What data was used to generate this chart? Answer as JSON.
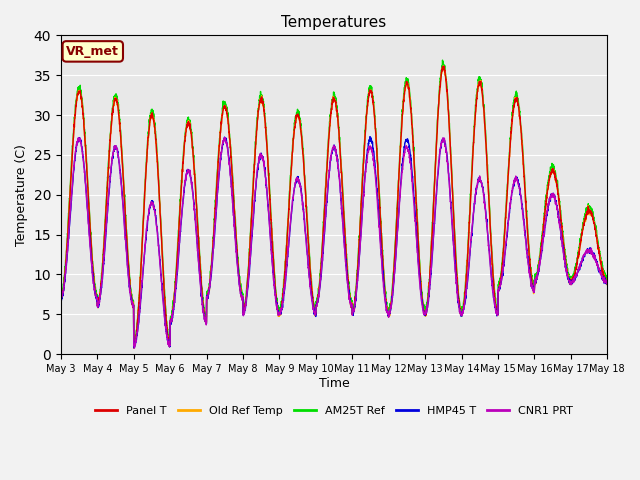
{
  "title": "Temperatures",
  "xlabel": "Time",
  "ylabel": "Temperature (C)",
  "ylim": [
    0,
    40
  ],
  "xlim_days": [
    0,
    15
  ],
  "annotation": "VR_met",
  "background_color": "#e8e8e8",
  "fig_background": "#f2f2f2",
  "grid_color": "white",
  "series": {
    "Panel T": {
      "color": "#dd0000",
      "lw": 1.0
    },
    "Old Ref Temp": {
      "color": "#ffaa00",
      "lw": 1.0
    },
    "AM25T Ref": {
      "color": "#00dd00",
      "lw": 1.0
    },
    "HMP45 T": {
      "color": "#0000dd",
      "lw": 1.0
    },
    "CNR1 PRT": {
      "color": "#bb00bb",
      "lw": 1.0
    }
  },
  "xtick_labels": [
    "May 3",
    "May 4",
    "May 5",
    "May 6",
    "May 7",
    "May 8",
    "May 9",
    "May 10",
    "May 11",
    "May 12",
    "May 13",
    "May 14",
    "May 15",
    "May 16",
    "May 17",
    "May 18"
  ],
  "xtick_positions": [
    0,
    1,
    2,
    3,
    4,
    5,
    6,
    7,
    8,
    9,
    10,
    11,
    12,
    13,
    14,
    15
  ],
  "daily_mins": [
    7,
    6,
    1,
    4,
    7,
    5,
    5,
    6,
    5,
    5,
    5,
    5,
    8,
    9,
    9,
    9
  ],
  "daily_maxs": [
    33,
    32,
    30,
    29,
    31,
    32,
    30,
    32,
    33,
    34,
    36,
    34,
    32,
    23,
    18,
    10
  ],
  "blue_maxs": [
    27,
    26,
    19,
    23,
    27,
    25,
    22,
    26,
    27,
    27,
    27,
    22,
    22,
    20,
    13,
    9
  ],
  "purple_maxs": [
    27,
    26,
    19,
    23,
    27,
    25,
    22,
    26,
    26,
    26,
    27,
    22,
    22,
    20,
    13,
    9
  ],
  "n_points": 3000
}
